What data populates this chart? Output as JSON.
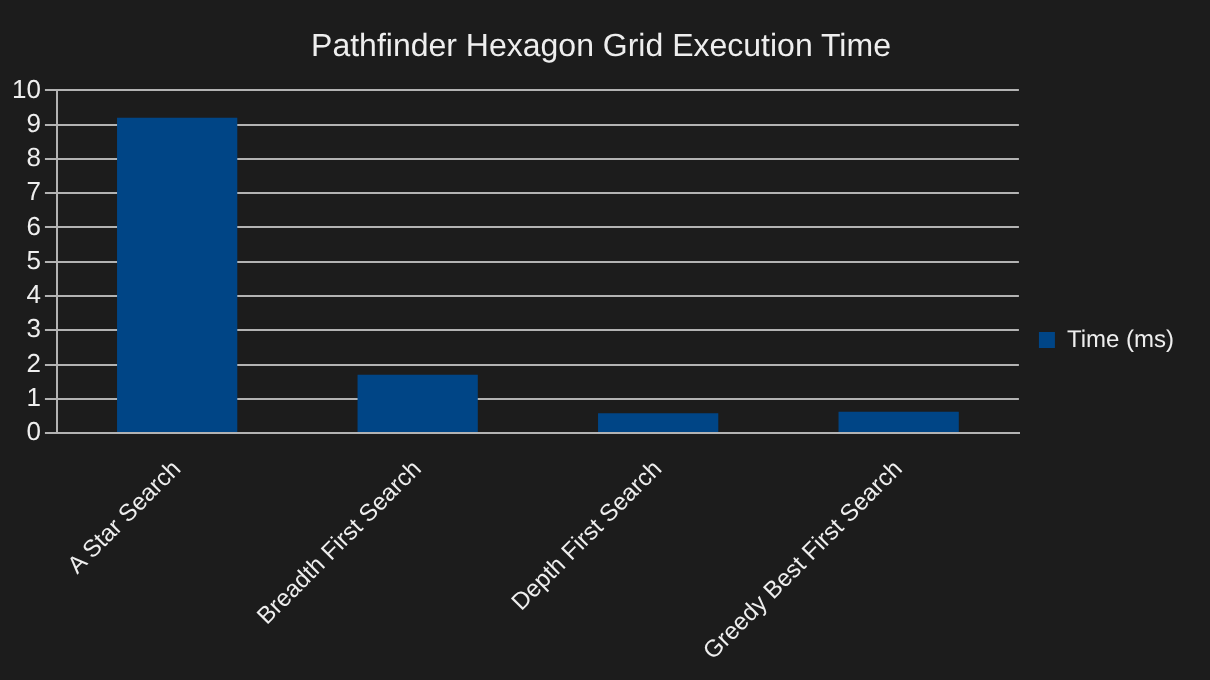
{
  "chart_data": {
    "type": "bar",
    "title": "Pathfinder Hexagon Grid Execution Time",
    "categories": [
      "A Star Search",
      "Breadth First Search",
      "Depth First Search",
      "Greedy Best First Search"
    ],
    "series": [
      {
        "name": "Time (ms)",
        "color": "#004586",
        "values": [
          9.2,
          1.7,
          0.58,
          0.62
        ]
      }
    ],
    "ylim": [
      0,
      10
    ],
    "yticks": [
      0,
      1,
      2,
      3,
      4,
      5,
      6,
      7,
      8,
      9,
      10
    ],
    "grid": "y",
    "legend": "right"
  }
}
